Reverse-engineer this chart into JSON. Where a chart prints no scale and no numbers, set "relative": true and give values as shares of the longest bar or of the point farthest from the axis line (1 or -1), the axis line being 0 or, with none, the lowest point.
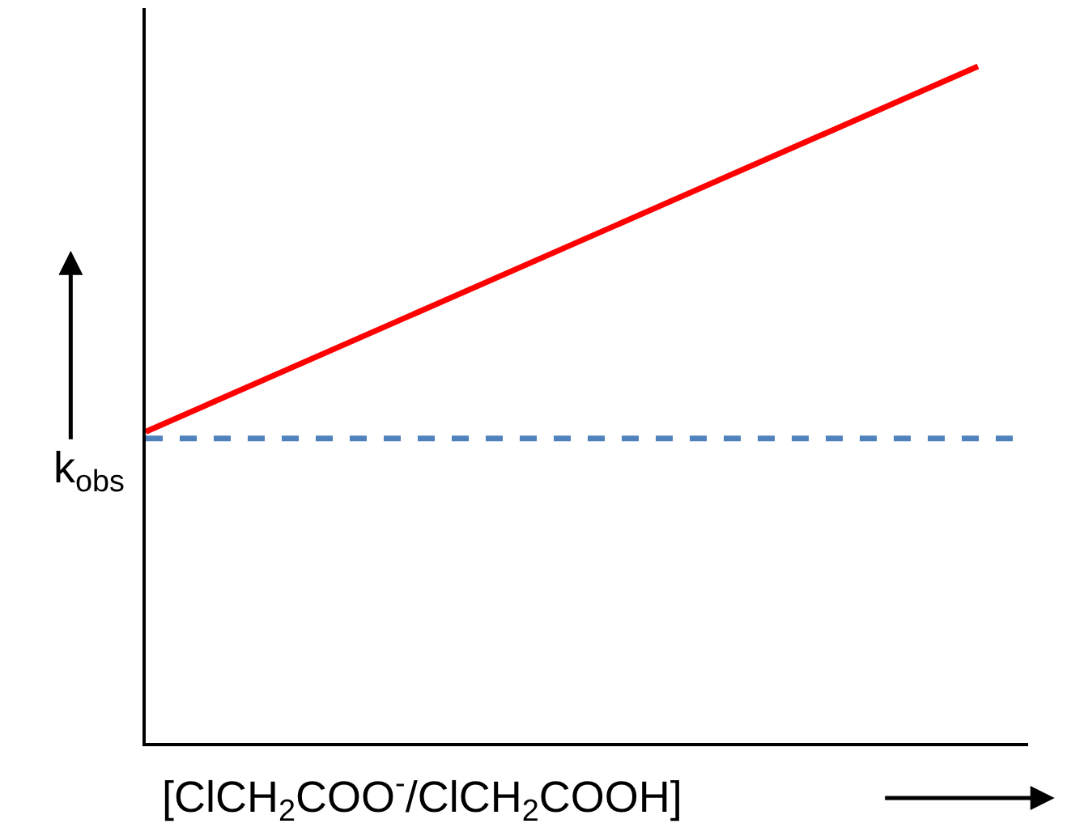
{
  "chart_data": {
    "type": "line",
    "relative": true,
    "xlabel": "[ClCH$_{2}$COO$^{-}$/ClCH$_{2}$COOH]",
    "ylabel": "k$_{obs}$",
    "categories": [
      null,
      null
    ],
    "series": [
      {
        "color": "#ff0000",
        "values": [
          0.46,
          1
        ]
      }
    ],
    "ref_lines": [
      {
        "axis": "y",
        "value": 0.45,
        "color": "#4f81bd",
        "line_style": "dashed"
      }
    ],
    "marker": "none",
    "line_style": "solid"
  }
}
